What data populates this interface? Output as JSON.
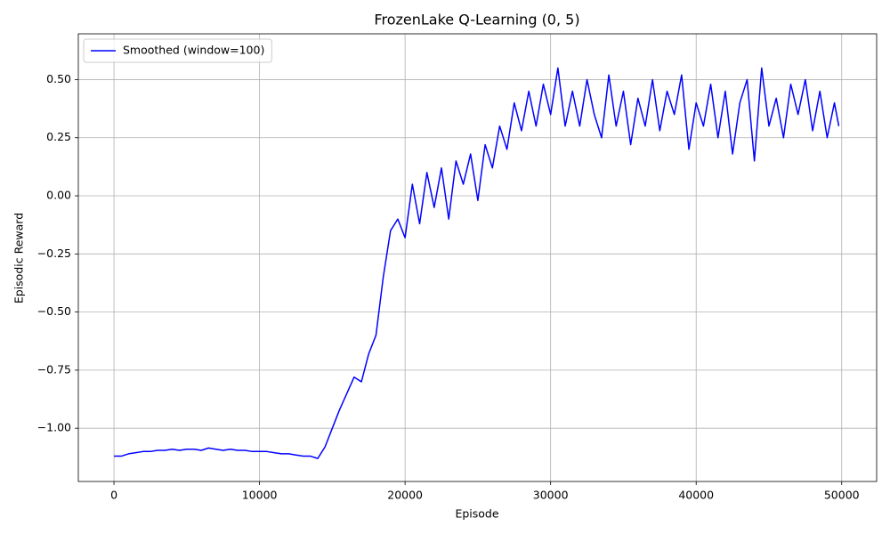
{
  "chart_data": {
    "type": "line",
    "title": "FrozenLake Q-Learning (0, 5)",
    "x_label": "Episode",
    "y_label": "Episodic Reward",
    "legend": "upper left",
    "grid": true,
    "x": [
      0,
      500,
      1000,
      1500,
      2000,
      2500,
      3000,
      3500,
      4000,
      4500,
      5000,
      5500,
      6000,
      6500,
      7000,
      7500,
      8000,
      8500,
      9000,
      9500,
      10000,
      10500,
      11000,
      11500,
      12000,
      12500,
      13000,
      13500,
      14000,
      14500,
      15000,
      15500,
      16000,
      16500,
      17000,
      17500,
      18000,
      18500,
      19000,
      19500,
      20000,
      20500,
      21000,
      21500,
      22000,
      22500,
      23000,
      23500,
      24000,
      24500,
      25000,
      25500,
      26000,
      26500,
      27000,
      27500,
      28000,
      28500,
      29000,
      29500,
      30000,
      30500,
      31000,
      31500,
      32000,
      32500,
      33000,
      33500,
      34000,
      34500,
      35000,
      35500,
      36000,
      36500,
      37000,
      37500,
      38000,
      38500,
      39000,
      39500,
      40000,
      40500,
      41000,
      41500,
      42000,
      42500,
      43000,
      43500,
      44000,
      44500,
      45000,
      45500,
      46000,
      46500,
      47000,
      47500,
      48000,
      48500,
      49000,
      49500,
      49800
    ],
    "series": [
      {
        "name": "Smoothed (window=100)",
        "color": "#0000ff",
        "values": [
          -1.12,
          -1.12,
          -1.11,
          -1.105,
          -1.1,
          -1.1,
          -1.095,
          -1.095,
          -1.09,
          -1.095,
          -1.09,
          -1.09,
          -1.095,
          -1.085,
          -1.09,
          -1.095,
          -1.09,
          -1.095,
          -1.095,
          -1.1,
          -1.1,
          -1.1,
          -1.105,
          -1.11,
          -1.11,
          -1.115,
          -1.12,
          -1.12,
          -1.13,
          -1.08,
          -1.0,
          -0.92,
          -0.85,
          -0.78,
          -0.8,
          -0.68,
          -0.6,
          -0.35,
          -0.15,
          -0.1,
          -0.18,
          0.05,
          -0.12,
          0.1,
          -0.05,
          0.12,
          -0.1,
          0.15,
          0.05,
          0.18,
          -0.02,
          0.22,
          0.12,
          0.3,
          0.2,
          0.4,
          0.28,
          0.45,
          0.3,
          0.48,
          0.35,
          0.55,
          0.3,
          0.45,
          0.3,
          0.5,
          0.35,
          0.25,
          0.52,
          0.3,
          0.45,
          0.22,
          0.42,
          0.3,
          0.5,
          0.28,
          0.45,
          0.35,
          0.52,
          0.2,
          0.4,
          0.3,
          0.48,
          0.25,
          0.45,
          0.18,
          0.4,
          0.5,
          0.15,
          0.55,
          0.3,
          0.42,
          0.25,
          0.48,
          0.35,
          0.5,
          0.28,
          0.45,
          0.25,
          0.4,
          0.3
        ]
      }
    ],
    "xlim": [
      -2450,
      52400
    ],
    "ylim": [
      -1.229,
      0.697
    ],
    "xticks": [
      0,
      10000,
      20000,
      30000,
      40000,
      50000
    ],
    "yticks": [
      {
        "value": -1,
        "label": "−1.00"
      },
      {
        "value": -0.75,
        "label": "−0.75"
      },
      {
        "value": -0.5,
        "label": "−0.50"
      },
      {
        "value": -0.25,
        "label": "−0.25"
      },
      {
        "value": 0,
        "label": "0.00"
      },
      {
        "value": 0.25,
        "label": "0.25"
      },
      {
        "value": 0.5,
        "label": "0.50"
      }
    ]
  }
}
